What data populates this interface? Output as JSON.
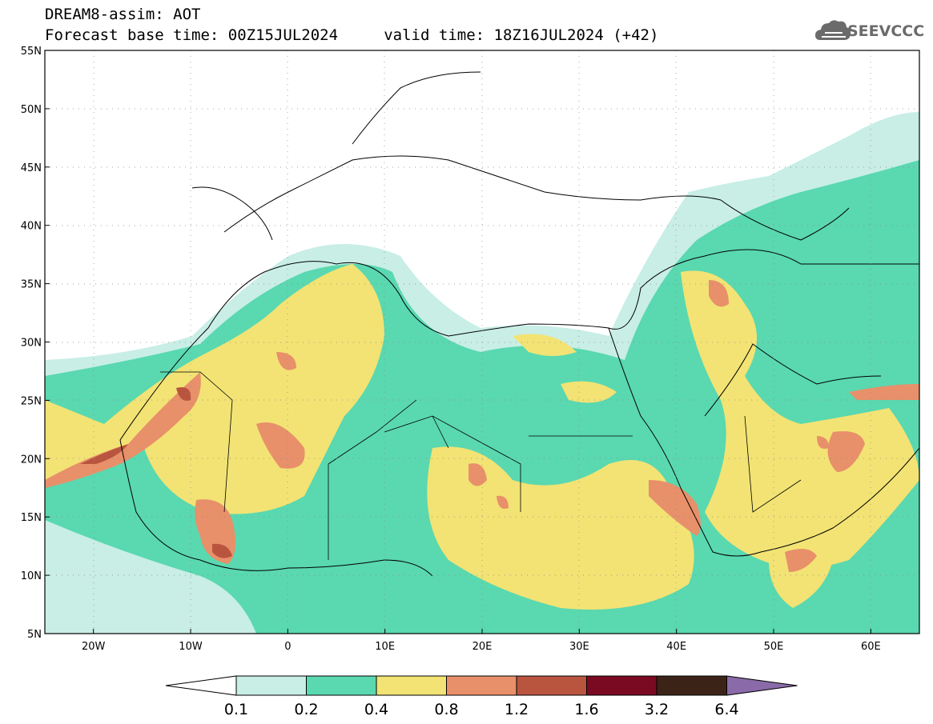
{
  "header": {
    "line1": "DREAM8-assim: AOT",
    "line2": "Forecast base time: 00Z15JUL2024     valid time: 18Z16JUL2024 (+42)"
  },
  "logo": {
    "text": "SEEVCCC",
    "icon": "cloud-icon"
  },
  "map": {
    "lon_range": [
      -25,
      65
    ],
    "lat_range": [
      5,
      55
    ],
    "lat_ticks": [
      "55N",
      "50N",
      "45N",
      "40N",
      "35N",
      "30N",
      "25N",
      "20N",
      "15N",
      "10N",
      "5N"
    ],
    "lon_ticks": [
      "20W",
      "10W",
      "0",
      "10E",
      "20E",
      "30E",
      "40E",
      "50E",
      "60E"
    ],
    "grid": "dotted"
  },
  "colorbar": {
    "labels": [
      "0.1",
      "0.2",
      "0.4",
      "0.8",
      "1.2",
      "1.6",
      "3.2",
      "6.4"
    ],
    "colors": [
      "#ffffff",
      "#c8eee6",
      "#5ad8b0",
      "#f2e374",
      "#e8906a",
      "#b9553f",
      "#7a0a22",
      "#3b2417",
      "#8a6aa8"
    ]
  }
}
